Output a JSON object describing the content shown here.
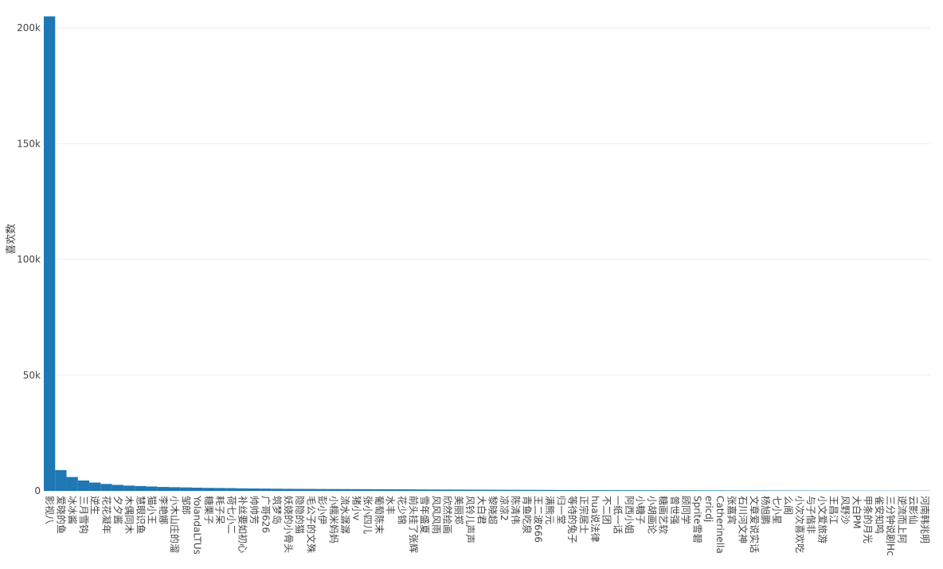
{
  "chart_data": {
    "type": "bar",
    "y_title": "喜欢数",
    "categories": [
      "影视八",
      "爱晓的鱼",
      "冰冰酱",
      "三月雪钩",
      "逆生",
      "花花凝年",
      "夕夕酱",
      "木偶同木",
      "慧眼识鱼",
      "猫小王",
      "李艳娜",
      "小木山庄的溜",
      "邹郎",
      "YolandaLTUs",
      "糖栗子",
      "耗子呆",
      "荷七小二",
      "补丝要如初心",
      "帅帅芳",
      "广哥626",
      "筑梦岛",
      "妖娆的小骨头",
      "隐隐的猫",
      "毛公子的文殊",
      "彭小伊",
      "小糯米妈妈",
      "流水潺潺",
      "猪小v",
      "张小四儿",
      "葡萄陈末",
      "水丰",
      "花少锦",
      "前头挂了张辉",
      "雪年盛夏",
      "风风风雨",
      "欣然绘画",
      "美丽郑",
      "风铃儿声声",
      "大白君",
      "黎晓超",
      "凉凉2",
      "陈清伟",
      "青鱼吃泉",
      "王二波666",
      "满熊元",
      "归一堂",
      "等待的兔子",
      "正宗居士",
      "hua说法律",
      "不二团",
      "一纸一话",
      "阿西小姐",
      "小糖子",
      "小胡画论",
      "糖画艺软",
      "曾世强",
      "顾同学",
      "Sprite雪碧",
      "ericdj",
      "Catherinella",
      "张嘉宾",
      "石川河文神",
      "文章爱说实话",
      "杨旭鹏",
      "七小星",
      "么阁",
      "小次次喜欢吃",
      "与子偕非",
      "小文爱旅游",
      "王昌江",
      "风野沙",
      "大白PM",
      "甲条的月光",
      "雀安知鸣",
      "三分钟说剧Hc",
      "逆流而上阿",
      "云影仙",
      "河南韩兆明"
    ],
    "values": [
      205000,
      9000,
      6000,
      4500,
      3600,
      3000,
      2600,
      2300,
      2100,
      1900,
      1700,
      1600,
      1500,
      1400,
      1300,
      1250,
      1200,
      1100,
      1050,
      1000,
      950,
      900,
      880,
      850,
      820,
      800,
      780,
      760,
      740,
      720,
      700,
      680,
      650,
      620,
      600,
      580,
      560,
      540,
      520,
      500,
      480,
      460,
      440,
      420,
      400,
      380,
      360,
      340,
      330,
      320,
      310,
      300,
      290,
      280,
      270,
      260,
      250,
      240,
      230,
      220,
      210,
      200,
      190,
      180,
      170,
      160,
      150,
      140,
      130,
      120,
      110,
      100,
      95,
      90,
      85,
      80,
      75,
      70
    ],
    "color": "#1f77b4",
    "ylim": [
      0,
      206900
    ],
    "yticks": [
      0,
      {
        "value": 50000,
        "label": "50k"
      },
      {
        "value": 100000,
        "label": "100k"
      },
      {
        "value": 150000,
        "label": "150k"
      },
      {
        "value": 200000,
        "label": "200k"
      }
    ],
    "grid": true
  }
}
